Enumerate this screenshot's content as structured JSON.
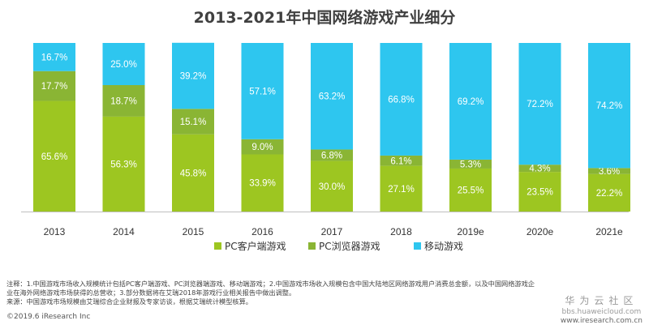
{
  "chart_data": {
    "type": "bar",
    "stacked": true,
    "title": "2013-2021年中国网络游戏产业细分",
    "xlabel": "",
    "ylabel": "",
    "ylim": [
      0,
      100
    ],
    "categories": [
      "2013",
      "2014",
      "2015",
      "2016",
      "2017",
      "2018",
      "2019e",
      "2020e",
      "2021e"
    ],
    "series": [
      {
        "name": "PC客户端游戏",
        "color": "#9dc621",
        "label_color": "#ffffff",
        "values": [
          65.6,
          56.3,
          45.8,
          33.9,
          30.0,
          27.1,
          25.5,
          23.5,
          22.2
        ]
      },
      {
        "name": "PC浏览器游戏",
        "color": "#8ab534",
        "label_color": "#ffffff",
        "values": [
          17.7,
          18.7,
          15.1,
          9.0,
          6.8,
          6.1,
          5.3,
          4.3,
          3.6
        ]
      },
      {
        "name": "移动游戏",
        "color": "#2ec6ef",
        "label_color": "#ffffff",
        "values": [
          16.7,
          25.0,
          39.2,
          57.1,
          63.2,
          66.8,
          69.2,
          72.2,
          74.2
        ]
      }
    ],
    "legend_position": "bottom"
  },
  "notes": {
    "line1": "注释：1.中国游戏市场收入规模统计包括PC客户端游戏、PC浏览器端游戏、移动端游戏；2.中国游戏市场收入规模包含中国大陆地区网络游戏用户消费总金额，以及中国网络游戏企",
    "line2": "业在海外网络游戏市场获得的总营收；3.部分数据将在艾瑞2018年游戏行业相关报告中做出调整。",
    "line3": "来源：中国游戏市场规模由艾瑞综合企业财报及专家访谈，根据艾瑞统计模型核算。"
  },
  "copyright": "©2019.6 iResearch Inc",
  "watermark": {
    "name": "华为云社区",
    "url1": "bbs.huaweicloud.com",
    "url2": "www.iresearch.com.cn"
  }
}
